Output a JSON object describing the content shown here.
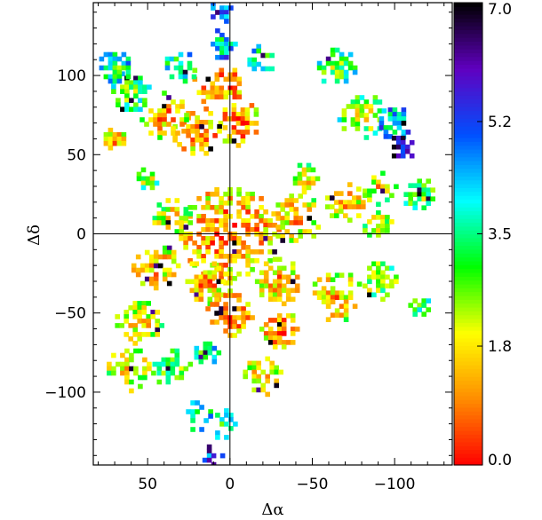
{
  "chart_data": {
    "type": "heatmap",
    "title": "",
    "xlabel": "Δα",
    "ylabel": "Δδ",
    "xlim": [
      83,
      -135
    ],
    "ylim": [
      -146,
      146
    ],
    "xticks": [
      {
        "value": 50,
        "label": "50"
      },
      {
        "value": 0,
        "label": "0"
      },
      {
        "value": -50,
        "label": "−50"
      },
      {
        "value": -100,
        "label": "−100"
      }
    ],
    "yticks": [
      {
        "value": 100,
        "label": "100"
      },
      {
        "value": 50,
        "label": "50"
      },
      {
        "value": 0,
        "label": "0"
      },
      {
        "value": -50,
        "label": "−50"
      },
      {
        "value": -100,
        "label": "−100"
      }
    ],
    "colorbar": {
      "range": [
        0.0,
        7.0
      ],
      "ticks": [
        {
          "value": 0.0,
          "label": "0.0"
        },
        {
          "value": 1.8,
          "label": "1.8"
        },
        {
          "value": 3.5,
          "label": "3.5"
        },
        {
          "value": 5.2,
          "label": "5.2"
        },
        {
          "value": 7.0,
          "label": "7.0"
        }
      ],
      "colorscale": [
        "#ff0000",
        "#ff8c00",
        "#ffff00",
        "#00ff00",
        "#00ffff",
        "#0050ff",
        "#6000c0",
        "#000000"
      ]
    },
    "crosshair": {
      "x": 0,
      "y": 0
    },
    "regions": [
      {
        "x": 0,
        "y": 0,
        "r": 30,
        "value": 0.6
      },
      {
        "x": 8,
        "y": 95,
        "r": 16,
        "value": 0.4
      },
      {
        "x": -5,
        "y": 70,
        "r": 14,
        "value": 0.5
      },
      {
        "x": 20,
        "y": 65,
        "r": 15,
        "value": 0.5
      },
      {
        "x": 40,
        "y": 75,
        "r": 14,
        "value": 0.8
      },
      {
        "x": 60,
        "y": 90,
        "r": 13,
        "value": 2.5
      },
      {
        "x": 70,
        "y": 105,
        "r": 10,
        "value": 3.0
      },
      {
        "x": 30,
        "y": 105,
        "r": 10,
        "value": 2.8
      },
      {
        "x": 5,
        "y": 120,
        "r": 9,
        "value": 3.5
      },
      {
        "x": 5,
        "y": 140,
        "r": 8,
        "value": 4.5
      },
      {
        "x": -20,
        "y": 110,
        "r": 9,
        "value": 3.0
      },
      {
        "x": -65,
        "y": 105,
        "r": 12,
        "value": 2.5
      },
      {
        "x": -80,
        "y": 75,
        "r": 14,
        "value": 2.0
      },
      {
        "x": -100,
        "y": 70,
        "r": 10,
        "value": 3.5
      },
      {
        "x": -105,
        "y": 55,
        "r": 8,
        "value": 5.5
      },
      {
        "x": -90,
        "y": 30,
        "r": 12,
        "value": 1.5
      },
      {
        "x": -115,
        "y": 25,
        "r": 10,
        "value": 2.2
      },
      {
        "x": -70,
        "y": 20,
        "r": 12,
        "value": 1.0
      },
      {
        "x": -40,
        "y": 10,
        "r": 16,
        "value": 1.2
      },
      {
        "x": 35,
        "y": 10,
        "r": 12,
        "value": 1.6
      },
      {
        "x": 45,
        "y": -20,
        "r": 14,
        "value": 1.0
      },
      {
        "x": 15,
        "y": -30,
        "r": 14,
        "value": 0.8
      },
      {
        "x": -30,
        "y": -30,
        "r": 14,
        "value": 1.0
      },
      {
        "x": -65,
        "y": -40,
        "r": 16,
        "value": 1.2
      },
      {
        "x": -90,
        "y": -30,
        "r": 12,
        "value": 2.0
      },
      {
        "x": -115,
        "y": -45,
        "r": 7,
        "value": 2.8
      },
      {
        "x": 0,
        "y": -50,
        "r": 14,
        "value": 0.4
      },
      {
        "x": -30,
        "y": -60,
        "r": 12,
        "value": 0.6
      },
      {
        "x": 55,
        "y": -55,
        "r": 14,
        "value": 1.3
      },
      {
        "x": 60,
        "y": -85,
        "r": 14,
        "value": 1.4
      },
      {
        "x": 35,
        "y": -85,
        "r": 12,
        "value": 2.5
      },
      {
        "x": 15,
        "y": -75,
        "r": 9,
        "value": 3.0
      },
      {
        "x": -20,
        "y": -90,
        "r": 12,
        "value": 1.2
      },
      {
        "x": 20,
        "y": -115,
        "r": 9,
        "value": 2.8
      },
      {
        "x": 5,
        "y": -120,
        "r": 9,
        "value": 3.0
      },
      {
        "x": 10,
        "y": -140,
        "r": 7,
        "value": 4.8
      },
      {
        "x": 70,
        "y": 60,
        "r": 7,
        "value": 1.0
      },
      {
        "x": -45,
        "y": 35,
        "r": 9,
        "value": 1.4
      },
      {
        "x": 50,
        "y": 35,
        "r": 7,
        "value": 2.0
      },
      {
        "x": -90,
        "y": 5,
        "r": 9,
        "value": 1.6
      }
    ]
  }
}
